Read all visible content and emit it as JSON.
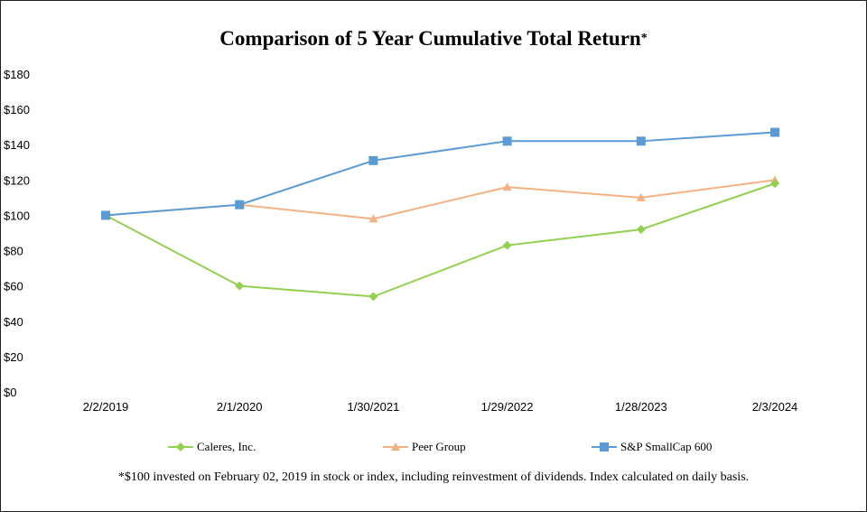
{
  "chart_data": {
    "type": "line",
    "title": "Comparison of 5 Year Cumulative Total Return",
    "title_marker": "*",
    "categories": [
      "2/2/2019",
      "2/1/2020",
      "1/30/2021",
      "1/29/2022",
      "1/28/2023",
      "2/3/2024"
    ],
    "ylim": [
      0,
      180
    ],
    "y_ticks": [
      "$0",
      "$20",
      "$40",
      "$60",
      "$80",
      "$100",
      "$120",
      "$140",
      "$160",
      "$180"
    ],
    "y_tick_values": [
      0,
      20,
      40,
      60,
      80,
      100,
      120,
      140,
      160,
      180
    ],
    "grid": false,
    "legend_position": "bottom",
    "series": [
      {
        "name": "Caleres, Inc.",
        "values": [
          100,
          60,
          54,
          83,
          92,
          118
        ],
        "color": "#92d050",
        "marker": "diamond"
      },
      {
        "name": "Peer Group",
        "values": [
          100,
          106,
          98,
          116,
          110,
          120
        ],
        "color": "#f4b183",
        "marker": "triangle"
      },
      {
        "name": "S&P SmallCap 600",
        "values": [
          100,
          106,
          131,
          142,
          142,
          147
        ],
        "color": "#5b9bd5",
        "marker": "square"
      }
    ],
    "footnote": "*$100 invested on February 02, 2019 in stock or index, including reinvestment of dividends. Index calculated on daily basis."
  }
}
